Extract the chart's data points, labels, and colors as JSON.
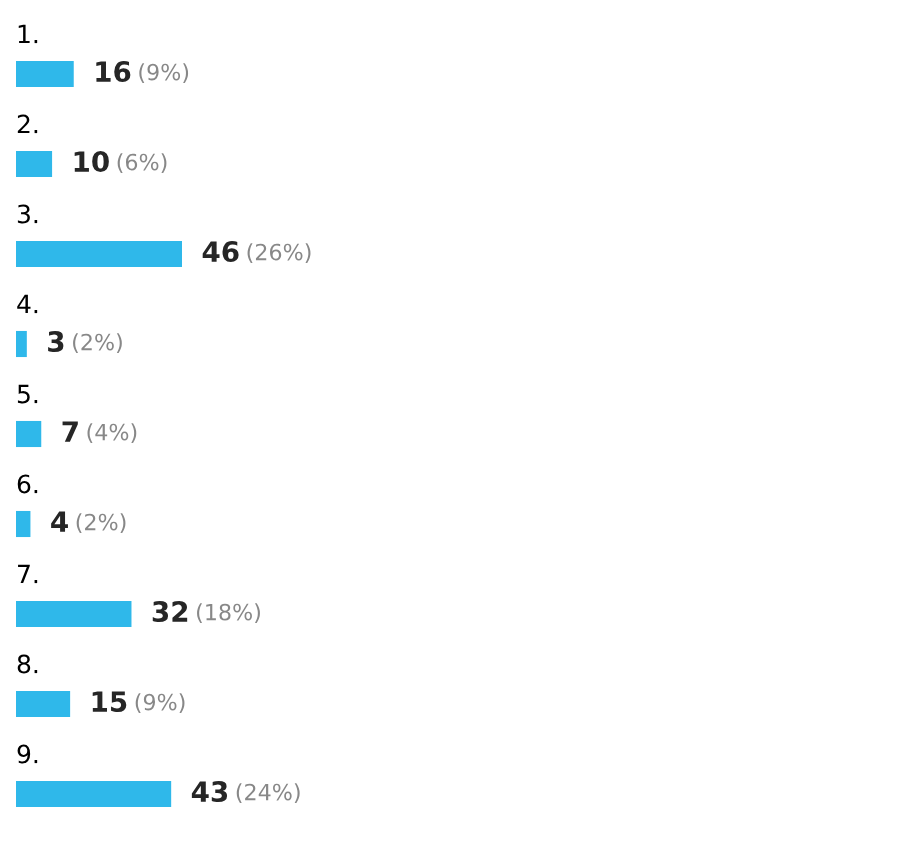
{
  "chart_data": {
    "type": "bar",
    "orientation": "horizontal",
    "categories": [
      "1.",
      "2.",
      "3.",
      "4.",
      "5.",
      "6.",
      "7.",
      "8.",
      "9."
    ],
    "values": [
      16,
      10,
      46,
      3,
      7,
      4,
      32,
      15,
      43
    ],
    "value_labels": [
      "16 (9%)",
      "10 (6%)",
      "46 (26%)",
      "3 (2%)",
      "7 (4%)",
      "4 (2%)",
      "32 (18%)",
      "15 (9%)",
      "43 (24%)"
    ],
    "color": "#2fb8ea"
  }
}
